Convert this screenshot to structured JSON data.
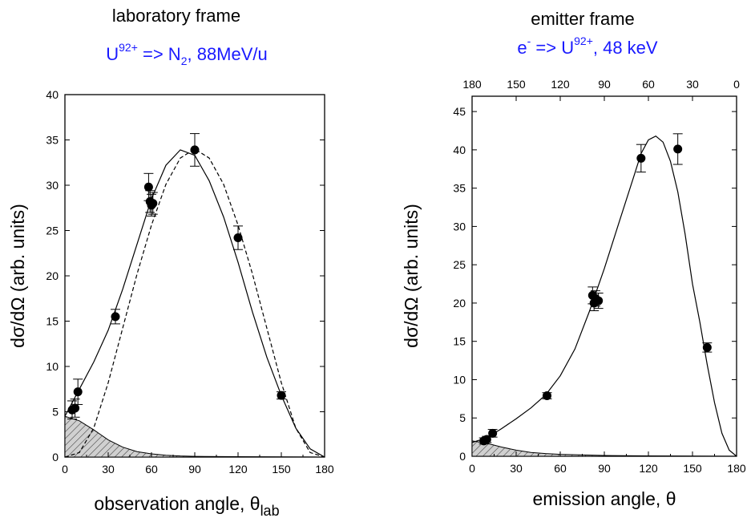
{
  "chart_data": [
    {
      "type": "scatter",
      "title": "laboratory frame",
      "subtitle": {
        "base": "U",
        "ion_charge": "92+",
        "mid": " => N",
        "target_sub": "2",
        "tail": ", 88MeV/u"
      },
      "xlabel": {
        "main": "observation angle, ",
        "symbol": "θ",
        "sub": "lab"
      },
      "ylabel": "dσ/dΩ (arb. units)",
      "xlim": [
        0,
        180
      ],
      "ylim": [
        0,
        40
      ],
      "x_ticks": [
        "0",
        "30",
        "60",
        "90",
        "120",
        "150",
        "180"
      ],
      "y_ticks": [
        "0",
        "5",
        "10",
        "15",
        "20",
        "25",
        "30",
        "35",
        "40"
      ],
      "series": [
        {
          "kind": "points_with_error",
          "x": [
            5,
            7,
            9,
            35,
            58,
            59,
            60,
            61,
            90,
            120,
            150
          ],
          "y": [
            5.2,
            5.4,
            7.2,
            15.5,
            29.8,
            28.2,
            27.8,
            28.0,
            33.9,
            24.2,
            6.8
          ],
          "yerr": [
            1.0,
            1.0,
            1.4,
            0.8,
            1.5,
            1.2,
            1.2,
            1.2,
            1.8,
            1.3,
            0.4
          ]
        },
        {
          "kind": "solid_curve",
          "x": [
            0,
            10,
            20,
            30,
            40,
            50,
            60,
            70,
            80,
            90,
            100,
            110,
            120,
            130,
            140,
            150,
            160,
            170,
            180
          ],
          "y": [
            4.5,
            7.5,
            10.5,
            14.0,
            18.5,
            23.5,
            28.5,
            32.2,
            33.9,
            33.3,
            30.5,
            26.5,
            21.5,
            16.0,
            11.0,
            6.8,
            3.2,
            0.9,
            0
          ]
        },
        {
          "kind": "dashed_curve",
          "x": [
            0,
            10,
            20,
            30,
            40,
            50,
            60,
            70,
            80,
            90,
            100,
            110,
            120,
            130,
            140,
            150,
            160,
            170,
            180
          ],
          "y": [
            0,
            0.5,
            3.2,
            8.2,
            14.2,
            20.2,
            25.6,
            30.1,
            33.0,
            34.0,
            33.0,
            30.1,
            25.6,
            20.2,
            14.2,
            8.2,
            3.2,
            0.5,
            0
          ]
        },
        {
          "kind": "hatched_area",
          "x": [
            0,
            10,
            20,
            30,
            40,
            50,
            60,
            70,
            80,
            90,
            120,
            150,
            180
          ],
          "y": [
            4.5,
            4.0,
            3.0,
            1.9,
            1.1,
            0.6,
            0.35,
            0.2,
            0.12,
            0.08,
            0.04,
            0.02,
            0
          ]
        }
      ]
    },
    {
      "type": "scatter",
      "title": "emitter frame",
      "subtitle": {
        "base": "e",
        "electron_charge": "-",
        "mid": " => U",
        "ion_charge": "92+",
        "tail": ", 48 keV"
      },
      "xlabel": {
        "main": "emission angle, ",
        "symbol": "θ"
      },
      "ylabel": "dσ/dΩ (arb. units)",
      "xlim": [
        0,
        180
      ],
      "ylim": [
        0,
        47
      ],
      "x_ticks": [
        "0",
        "30",
        "60",
        "90",
        "120",
        "150",
        "180"
      ],
      "top_x_ticks": [
        "180",
        "150",
        "120",
        "90",
        "60",
        "30",
        "0"
      ],
      "y_ticks": [
        "0",
        "5",
        "10",
        "15",
        "20",
        "25",
        "30",
        "35",
        "40",
        "45"
      ],
      "series": [
        {
          "kind": "points_with_error",
          "x": [
            8,
            10,
            14,
            51,
            82,
            83,
            84,
            86,
            115,
            140,
            160
          ],
          "y": [
            2.0,
            2.2,
            3.0,
            7.9,
            21.0,
            20.0,
            20.6,
            20.3,
            38.9,
            40.1,
            14.2
          ],
          "yerr": [
            0.4,
            0.4,
            0.5,
            0.4,
            1.1,
            1.0,
            1.0,
            1.0,
            1.8,
            2.0,
            0.6
          ]
        },
        {
          "kind": "solid_curve",
          "x": [
            0,
            10,
            20,
            30,
            40,
            50,
            60,
            70,
            80,
            90,
            100,
            110,
            115,
            120,
            125,
            130,
            135,
            140,
            145,
            150,
            155,
            160,
            165,
            170,
            175,
            180
          ],
          "y": [
            1.8,
            2.4,
            3.6,
            4.9,
            6.3,
            8.0,
            10.5,
            14.0,
            19.0,
            24.5,
            30.5,
            36.5,
            39.5,
            41.3,
            41.8,
            41.0,
            38.5,
            34.5,
            29.0,
            22.5,
            17.5,
            12.0,
            7.0,
            3.0,
            0.8,
            0
          ]
        },
        {
          "kind": "hatched_area",
          "x": [
            0,
            10,
            20,
            30,
            40,
            50,
            60,
            90,
            120,
            150,
            180
          ],
          "y": [
            2.0,
            1.7,
            1.2,
            0.8,
            0.5,
            0.35,
            0.25,
            0.1,
            0.05,
            0.02,
            0
          ]
        }
      ]
    }
  ]
}
